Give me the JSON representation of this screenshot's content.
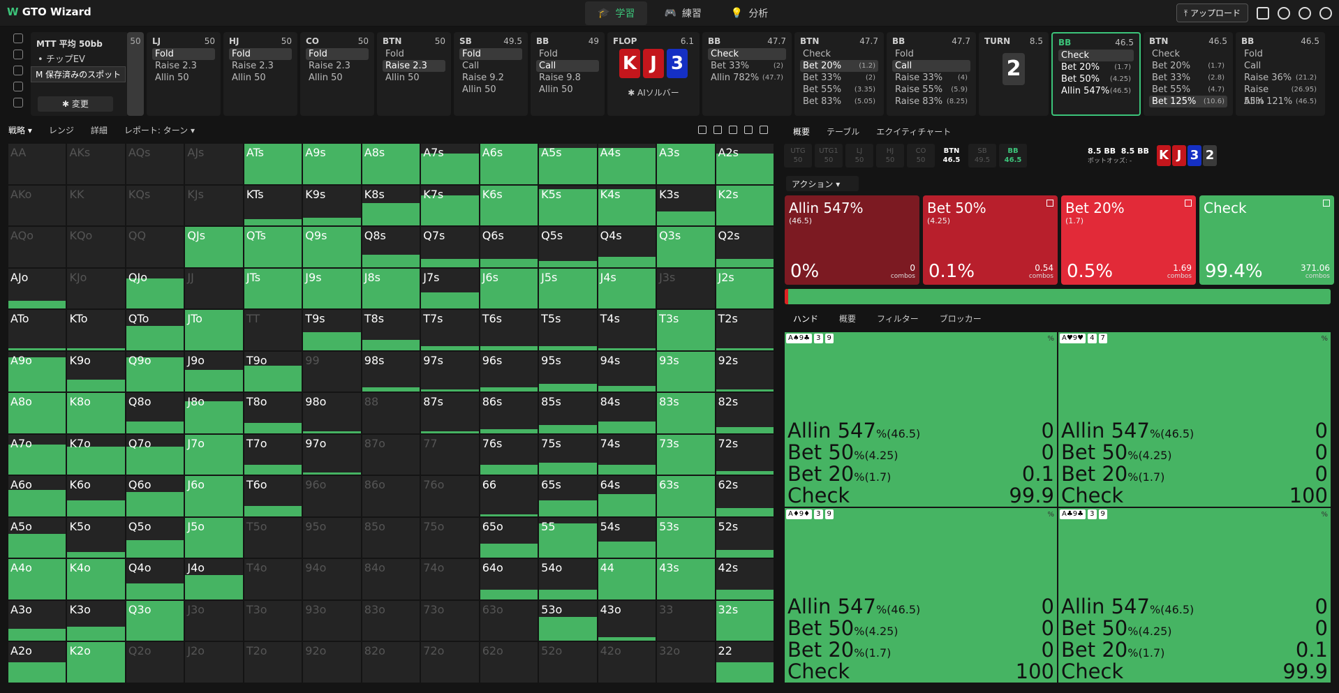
{
  "app": {
    "name": "GTO Wizard"
  },
  "nav": [
    {
      "label": "学習",
      "active": true
    },
    {
      "label": "練習",
      "active": false
    },
    {
      "label": "分析",
      "active": false
    }
  ],
  "toolbar": {
    "upload": "アップロード"
  },
  "spot": {
    "title": "MTT 平均 50bb",
    "ev": "チップEV",
    "tooltip": "保存済みのスポット",
    "change": "変更",
    "collapsed_stack": "50"
  },
  "strip": [
    {
      "pos": "LJ",
      "stack": "50",
      "actions": [
        {
          "l": "Fold",
          "sel": true
        },
        {
          "l": "Raise 2.3"
        },
        {
          "l": "Allin 50"
        }
      ]
    },
    {
      "pos": "HJ",
      "stack": "50",
      "actions": [
        {
          "l": "Fold",
          "sel": true
        },
        {
          "l": "Raise 2.3"
        },
        {
          "l": "Allin 50"
        }
      ]
    },
    {
      "pos": "CO",
      "stack": "50",
      "actions": [
        {
          "l": "Fold",
          "sel": true
        },
        {
          "l": "Raise 2.3"
        },
        {
          "l": "Allin 50"
        }
      ]
    },
    {
      "pos": "BTN",
      "stack": "50",
      "actions": [
        {
          "l": "Fold"
        },
        {
          "l": "Raise 2.3",
          "sel": true
        },
        {
          "l": "Allin 50"
        }
      ]
    },
    {
      "pos": "SB",
      "stack": "49.5",
      "actions": [
        {
          "l": "Fold",
          "sel": true
        },
        {
          "l": "Call"
        },
        {
          "l": "Raise 9.2"
        },
        {
          "l": "Allin 50"
        }
      ]
    },
    {
      "pos": "BB",
      "stack": "49",
      "actions": [
        {
          "l": "Fold"
        },
        {
          "l": "Call",
          "sel": true
        },
        {
          "l": "Raise 9.8"
        },
        {
          "l": "Allin 50"
        }
      ]
    }
  ],
  "flop": {
    "label": "FLOP",
    "pot": "6.1",
    "cards": [
      {
        "r": "K",
        "c": "#c4161c"
      },
      {
        "r": "J",
        "c": "#c4161c"
      },
      {
        "r": "3",
        "c": "#1530c4"
      }
    ],
    "ai": "AIソルバー"
  },
  "strip2": [
    {
      "pos": "BB",
      "stack": "47.7",
      "actions": [
        {
          "l": "Check",
          "sel": true
        },
        {
          "l": "Bet 33%",
          "f": "(2)"
        },
        {
          "l": "Allin 782%",
          "f": "(47.7)"
        }
      ]
    },
    {
      "pos": "BTN",
      "stack": "47.7",
      "actions": [
        {
          "l": "Check"
        },
        {
          "l": "Bet 20%",
          "f": "(1.2)",
          "sel": true
        },
        {
          "l": "Bet 33%",
          "f": "(2)"
        },
        {
          "l": "Bet 55%",
          "f": "(3.35)"
        },
        {
          "l": "Bet 83%",
          "f": "(5.05)"
        }
      ]
    },
    {
      "pos": "BB",
      "stack": "47.7",
      "actions": [
        {
          "l": "Fold"
        },
        {
          "l": "Call",
          "sel": true
        },
        {
          "l": "Raise 33%",
          "f": "(4)"
        },
        {
          "l": "Raise 55%",
          "f": "(5.9)"
        },
        {
          "l": "Raise 83%",
          "f": "(8.25)"
        }
      ]
    }
  ],
  "turn": {
    "label": "TURN",
    "pot": "8.5",
    "card": "2"
  },
  "strip3": [
    {
      "pos": "BB",
      "stack": "46.5",
      "active": true,
      "actions": [
        {
          "l": "Check",
          "sel": true
        },
        {
          "l": "Bet 20%",
          "f": "(1.7)"
        },
        {
          "l": "Bet 50%",
          "f": "(4.25)"
        },
        {
          "l": "Allin 547%",
          "f": "(46.5)"
        }
      ]
    },
    {
      "pos": "BTN",
      "stack": "46.5",
      "actions": [
        {
          "l": "Check"
        },
        {
          "l": "Bet 20%",
          "f": "(1.7)"
        },
        {
          "l": "Bet 33%",
          "f": "(2.8)"
        },
        {
          "l": "Bet 55%",
          "f": "(4.7)"
        },
        {
          "l": "Bet 125%",
          "f": "(10.6)",
          "sel": true
        }
      ]
    },
    {
      "pos": "BB",
      "stack": "46.5",
      "actions": [
        {
          "l": "Fold"
        },
        {
          "l": "Call"
        },
        {
          "l": "Raise 36%",
          "f": "(21.2)"
        },
        {
          "l": "Raise 55%",
          "f": "(26.95)"
        },
        {
          "l": "Allin 121%",
          "f": "(46.5)"
        }
      ]
    }
  ],
  "left_tabs": [
    "戦略",
    "レンジ",
    "詳細",
    "レポート: ターン"
  ],
  "right_tabs": [
    "概要",
    "テーブル",
    "エクイティチャート"
  ],
  "seats": [
    {
      "p": "UTG",
      "s": "50"
    },
    {
      "p": "UTG1",
      "s": "50"
    },
    {
      "p": "LJ",
      "s": "50"
    },
    {
      "p": "HJ",
      "s": "50"
    },
    {
      "p": "CO",
      "s": "50"
    },
    {
      "p": "BTN",
      "s": "46.5",
      "on": 1
    },
    {
      "p": "SB",
      "s": "49.5"
    },
    {
      "p": "BB",
      "s": "46.5",
      "on": 2
    }
  ],
  "pot_info": {
    "pot": "8.5 BB",
    "pot2": "8.5 BB",
    "odds": "ポットオッズ: -"
  },
  "mini_cards": [
    {
      "r": "K",
      "c": "#c4161c"
    },
    {
      "r": "J",
      "c": "#c4161c"
    },
    {
      "r": "3",
      "c": "#1530c4"
    },
    {
      "r": "2",
      "c": "#3a3a3a"
    }
  ],
  "action_dropdown": "アクション",
  "action_cards": [
    {
      "name": "Allin 547%",
      "size": "(46.5)",
      "pct": "0%",
      "combos": "0",
      "color": "#7c1a22"
    },
    {
      "name": "Bet 50%",
      "size": "(4.25)",
      "pct": "0.1%",
      "combos": "0.54",
      "color": "#b81f2c"
    },
    {
      "name": "Bet 20%",
      "size": "(1.7)",
      "pct": "0.5%",
      "combos": "1.69",
      "color": "#e22a38"
    },
    {
      "name": "Check",
      "size": "",
      "pct": "99.4%",
      "combos": "371.06",
      "color": "#46b463"
    }
  ],
  "combos_label": "combos",
  "hand_tabs": [
    "ハンド",
    "概要",
    "フィルター",
    "ブロッカー"
  ],
  "combo_cells": [
    {
      "hand": "A♠9♣",
      "b1": "3",
      "b2": "9",
      "vals": [
        "0",
        "0",
        "0.1",
        "99.9"
      ]
    },
    {
      "hand": "A♥9♥",
      "b1": "4",
      "b2": "7",
      "vals": [
        "0",
        "0",
        "0",
        "100"
      ]
    },
    {
      "hand": "A♦9♦",
      "b1": "3",
      "b2": "9",
      "vals": [
        "0",
        "0",
        "0",
        "100"
      ]
    },
    {
      "hand": "A♣9♣",
      "b1": "3",
      "b2": "9",
      "vals": [
        "0",
        "0",
        "0.1",
        "99.9"
      ]
    }
  ],
  "combo_actions": [
    {
      "n": "Allin 547",
      "s": "%(46.5)"
    },
    {
      "n": "Bet 50",
      "s": "%(4.25)"
    },
    {
      "n": "Bet 20",
      "s": "%(1.7)"
    },
    {
      "n": "Check",
      "s": ""
    }
  ],
  "grid_zero_fill": 0,
  "grid": [
    [
      "AA",
      0
    ],
    [
      "AKs",
      0
    ],
    [
      "AQs",
      0
    ],
    [
      "AJs",
      0
    ],
    [
      "ATs",
      1
    ],
    [
      "A9s",
      1
    ],
    [
      "A8s",
      1
    ],
    [
      "A7s",
      0.75
    ],
    [
      "A6s",
      1
    ],
    [
      "A5s",
      0.9
    ],
    [
      "A4s",
      0.9
    ],
    [
      "A3s",
      1
    ],
    [
      "A2s",
      0.75
    ],
    [
      "AKo",
      0
    ],
    [
      "KK",
      0
    ],
    [
      "KQs",
      0
    ],
    [
      "KJs",
      0
    ],
    [
      "KTs",
      0.15
    ],
    [
      "K9s",
      0.2
    ],
    [
      "K8s",
      0.55
    ],
    [
      "K7s",
      0.75
    ],
    [
      "K6s",
      1
    ],
    [
      "K5s",
      0.9
    ],
    [
      "K4s",
      0.9
    ],
    [
      "K3s",
      0.35
    ],
    [
      "K2s",
      1
    ],
    [
      "AQo",
      0
    ],
    [
      "KQo",
      0
    ],
    [
      "QQ",
      0
    ],
    [
      "QJs",
      1
    ],
    [
      "QTs",
      1
    ],
    [
      "Q9s",
      1
    ],
    [
      "Q8s",
      0.3
    ],
    [
      "Q7s",
      0.2
    ],
    [
      "Q6s",
      0.2
    ],
    [
      "Q5s",
      0.15
    ],
    [
      "Q4s",
      0.25
    ],
    [
      "Q3s",
      1
    ],
    [
      "Q2s",
      0.2
    ],
    [
      "AJo",
      0.2
    ],
    [
      "KJo",
      0
    ],
    [
      "QJo",
      0.75
    ],
    [
      "JJ",
      0
    ],
    [
      "JTs",
      1
    ],
    [
      "J9s",
      1
    ],
    [
      "J8s",
      1
    ],
    [
      "J7s",
      0.4
    ],
    [
      "J6s",
      1
    ],
    [
      "J5s",
      1
    ],
    [
      "J4s",
      1
    ],
    [
      "J3s",
      0
    ],
    [
      "J2s",
      1
    ],
    [
      "ATo",
      0.05
    ],
    [
      "KTo",
      0.05
    ],
    [
      "QTo",
      0.6
    ],
    [
      "JTo",
      1
    ],
    [
      "TT",
      0
    ],
    [
      "T9s",
      0.45
    ],
    [
      "T8s",
      0.25
    ],
    [
      "T7s",
      0.1
    ],
    [
      "T6s",
      0.1
    ],
    [
      "T5s",
      0.1
    ],
    [
      "T4s",
      0.05
    ],
    [
      "T3s",
      1
    ],
    [
      "T2s",
      0.05
    ],
    [
      "A9o",
      0.85
    ],
    [
      "K9o",
      0.3
    ],
    [
      "Q9o",
      0.85
    ],
    [
      "J9o",
      0.55
    ],
    [
      "T9o",
      0.65
    ],
    [
      "99",
      0
    ],
    [
      "98s",
      0.1
    ],
    [
      "97s",
      0.05
    ],
    [
      "96s",
      0.1
    ],
    [
      "95s",
      0.2
    ],
    [
      "94s",
      0.15
    ],
    [
      "93s",
      1
    ],
    [
      "92s",
      0.05
    ],
    [
      "A8o",
      1
    ],
    [
      "K8o",
      1
    ],
    [
      "Q8o",
      0.3
    ],
    [
      "J8o",
      0.8
    ],
    [
      "T8o",
      0.25
    ],
    [
      "98o",
      0.05
    ],
    [
      "88",
      0
    ],
    [
      "87s",
      0.05
    ],
    [
      "86s",
      0.1
    ],
    [
      "85s",
      0.2
    ],
    [
      "84s",
      0.3
    ],
    [
      "83s",
      1
    ],
    [
      "82s",
      0.15
    ],
    [
      "A7o",
      0.75
    ],
    [
      "K7o",
      0.7
    ],
    [
      "Q7o",
      0.7
    ],
    [
      "J7o",
      1
    ],
    [
      "T7o",
      0.25
    ],
    [
      "97o",
      0.05
    ],
    [
      "87o",
      0
    ],
    [
      "77",
      0
    ],
    [
      "76s",
      0.25
    ],
    [
      "75s",
      0.3
    ],
    [
      "74s",
      0.25
    ],
    [
      "73s",
      1
    ],
    [
      "72s",
      0.1
    ],
    [
      "A6o",
      0.65
    ],
    [
      "K6o",
      0.4
    ],
    [
      "Q6o",
      0.6
    ],
    [
      "J6o",
      1
    ],
    [
      "T6o",
      0.25
    ],
    [
      "96o",
      0
    ],
    [
      "86o",
      0
    ],
    [
      "76o",
      0
    ],
    [
      "66",
      0.05
    ],
    [
      "65s",
      0.4
    ],
    [
      "64s",
      0.55
    ],
    [
      "63s",
      1
    ],
    [
      "62s",
      0.2
    ],
    [
      "A5o",
      0.6
    ],
    [
      "K5o",
      0.15
    ],
    [
      "Q5o",
      0.45
    ],
    [
      "J5o",
      1
    ],
    [
      "T5o",
      0
    ],
    [
      "95o",
      0
    ],
    [
      "85o",
      0
    ],
    [
      "75o",
      0
    ],
    [
      "65o",
      0.35
    ],
    [
      "55",
      0.85
    ],
    [
      "54s",
      0.4
    ],
    [
      "53s",
      1
    ],
    [
      "52s",
      0.2
    ],
    [
      "A4o",
      1
    ],
    [
      "K4o",
      1
    ],
    [
      "Q4o",
      0.4
    ],
    [
      "J4o",
      0.6
    ],
    [
      "T4o",
      0
    ],
    [
      "94o",
      0
    ],
    [
      "84o",
      0
    ],
    [
      "74o",
      0
    ],
    [
      "64o",
      0.25
    ],
    [
      "54o",
      0.25
    ],
    [
      "44",
      1
    ],
    [
      "43s",
      1
    ],
    [
      "42s",
      0.25
    ],
    [
      "A3o",
      0.3
    ],
    [
      "K3o",
      0.35
    ],
    [
      "Q3o",
      1
    ],
    [
      "J3o",
      0
    ],
    [
      "T3o",
      0
    ],
    [
      "93o",
      0
    ],
    [
      "83o",
      0
    ],
    [
      "73o",
      0
    ],
    [
      "63o",
      0
    ],
    [
      "53o",
      0.6
    ],
    [
      "43o",
      0.1
    ],
    [
      "33",
      0
    ],
    [
      "32s",
      1
    ],
    [
      "A2o",
      0.5
    ],
    [
      "K2o",
      1
    ],
    [
      "Q2o",
      0
    ],
    [
      "J2o",
      0
    ],
    [
      "T2o",
      0
    ],
    [
      "92o",
      0
    ],
    [
      "82o",
      0
    ],
    [
      "72o",
      0
    ],
    [
      "62o",
      0
    ],
    [
      "52o",
      0
    ],
    [
      "42o",
      0
    ],
    [
      "32o",
      0
    ],
    [
      "22",
      0.5
    ]
  ]
}
